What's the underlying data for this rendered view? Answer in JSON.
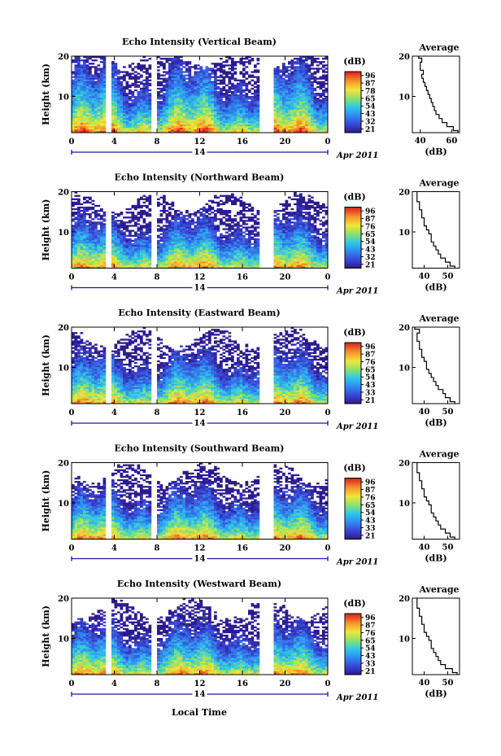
{
  "figure": {
    "footer_label": "Local Time"
  },
  "chart_data": [
    {
      "type": "heatmap",
      "title": "Echo Intensity (Vertical Beam)",
      "ylabel": "Height (km)",
      "y_ticks": [
        "10",
        "20"
      ],
      "ylim": [
        1,
        20
      ],
      "x_ticks": [
        "0",
        "4",
        "8",
        "12",
        "16",
        "20",
        "0"
      ],
      "xlim": [
        0,
        24
      ],
      "date_label": "14",
      "month_label": "Apr 2011",
      "colorbar": {
        "unit": "(dB)",
        "ticks": [
          "96",
          "87",
          "78",
          "65",
          "54",
          "43",
          "32",
          "21"
        ],
        "range": [
          21,
          96
        ]
      },
      "gaps_hours": [
        [
          3.2,
          3.6
        ],
        [
          7.6,
          8.0
        ],
        [
          17.6,
          19.0
        ]
      ],
      "profile": {
        "title": "Average",
        "xlabel": "(dB)",
        "x_ticks": [
          "40",
          "60"
        ],
        "xlim": [
          35,
          65
        ],
        "y_ticks": [
          "10",
          "20"
        ],
        "heights": [
          1,
          2,
          3,
          4,
          5,
          6,
          7,
          8,
          9,
          10,
          11,
          12,
          13,
          14,
          15,
          16,
          17,
          18,
          19,
          20
        ],
        "values": [
          64,
          61,
          57,
          54,
          52,
          50,
          49,
          48,
          47,
          46,
          45,
          44,
          43,
          42,
          41,
          42,
          40,
          40,
          41,
          39
        ]
      }
    },
    {
      "type": "heatmap",
      "title": "Echo Intensity (Northward Beam)",
      "ylabel": "Height (km)",
      "y_ticks": [
        "10",
        "20"
      ],
      "ylim": [
        1,
        20
      ],
      "x_ticks": [
        "0",
        "4",
        "8",
        "12",
        "16",
        "20",
        "0"
      ],
      "xlim": [
        0,
        24
      ],
      "date_label": "14",
      "month_label": "Apr 2011",
      "colorbar": {
        "unit": "(dB)",
        "ticks": [
          "96",
          "87",
          "76",
          "65",
          "54",
          "43",
          "32",
          "21"
        ],
        "range": [
          21,
          96
        ]
      },
      "gaps_hours": [
        [
          3.2,
          3.6
        ],
        [
          7.6,
          8.0
        ],
        [
          17.6,
          19.0
        ]
      ],
      "profile": {
        "title": "Average",
        "xlabel": "(dB)",
        "x_ticks": [
          "40",
          "50"
        ],
        "xlim": [
          35,
          55
        ],
        "y_ticks": [
          "10",
          "20"
        ],
        "heights": [
          1,
          2,
          3,
          4,
          5,
          6,
          7,
          8,
          9,
          10,
          11,
          12,
          13,
          14,
          15,
          16,
          17,
          18,
          19,
          20
        ],
        "values": [
          53,
          51,
          49,
          47,
          46,
          45,
          44,
          43,
          43,
          42,
          41,
          40,
          40,
          39,
          39,
          38,
          38,
          37,
          37,
          37
        ]
      }
    },
    {
      "type": "heatmap",
      "title": "Echo Intensity (Eastward Beam)",
      "ylabel": "Height (km)",
      "y_ticks": [
        "10",
        "20"
      ],
      "ylim": [
        1,
        20
      ],
      "x_ticks": [
        "0",
        "4",
        "8",
        "12",
        "16",
        "20",
        "0"
      ],
      "xlim": [
        0,
        24
      ],
      "date_label": "14",
      "month_label": "Apr 2011",
      "colorbar": {
        "unit": "(dB)",
        "ticks": [
          "96",
          "87",
          "76",
          "65",
          "54",
          "43",
          "33",
          "21"
        ],
        "range": [
          21,
          96
        ]
      },
      "gaps_hours": [
        [
          3.2,
          3.6
        ],
        [
          7.6,
          8.0
        ],
        [
          17.6,
          19.0
        ]
      ],
      "profile": {
        "title": "Average",
        "xlabel": "(dB)",
        "x_ticks": [
          "40",
          "50"
        ],
        "xlim": [
          35,
          55
        ],
        "y_ticks": [
          "10",
          "20"
        ],
        "heights": [
          1,
          2,
          3,
          4,
          5,
          6,
          7,
          8,
          9,
          10,
          11,
          12,
          13,
          14,
          15,
          16,
          17,
          18,
          19,
          20
        ],
        "values": [
          53,
          51,
          49,
          48,
          46,
          45,
          44,
          43,
          42,
          41,
          41,
          40,
          39,
          39,
          38,
          38,
          37,
          37,
          38,
          36
        ]
      }
    },
    {
      "type": "heatmap",
      "title": "Echo Intensity (Southward Beam)",
      "ylabel": "Height (km)",
      "y_ticks": [
        "10",
        "20"
      ],
      "ylim": [
        1,
        20
      ],
      "x_ticks": [
        "0",
        "4",
        "8",
        "12",
        "16",
        "20",
        "0"
      ],
      "xlim": [
        0,
        24
      ],
      "date_label": "14",
      "month_label": "Apr 2011",
      "colorbar": {
        "unit": "(dB)",
        "ticks": [
          "96",
          "87",
          "76",
          "65",
          "54",
          "43",
          "33",
          "21"
        ],
        "range": [
          21,
          96
        ]
      },
      "gaps_hours": [
        [
          3.2,
          3.6
        ],
        [
          7.6,
          8.0
        ],
        [
          17.6,
          19.0
        ]
      ],
      "profile": {
        "title": "Average",
        "xlabel": "(dB)",
        "x_ticks": [
          "40",
          "50"
        ],
        "xlim": [
          35,
          55
        ],
        "y_ticks": [
          "10",
          "20"
        ],
        "heights": [
          1,
          2,
          3,
          4,
          5,
          6,
          7,
          8,
          9,
          10,
          11,
          12,
          13,
          14,
          15,
          16,
          17,
          18,
          19,
          20
        ],
        "values": [
          53,
          51,
          49,
          47,
          46,
          45,
          44,
          43,
          43,
          42,
          41,
          40,
          40,
          39,
          39,
          38,
          38,
          37,
          37,
          37
        ]
      }
    },
    {
      "type": "heatmap",
      "title": "Echo Intensity (Westward Beam)",
      "ylabel": "Height (km)",
      "y_ticks": [
        "10",
        "20"
      ],
      "ylim": [
        1,
        20
      ],
      "x_ticks": [
        "0",
        "4",
        "8",
        "12",
        "16",
        "20",
        "0"
      ],
      "xlim": [
        0,
        24
      ],
      "date_label": "14",
      "month_label": "Apr 2011",
      "colorbar": {
        "unit": "(dB)",
        "ticks": [
          "96",
          "87",
          "76",
          "65",
          "54",
          "43",
          "33",
          "21"
        ],
        "range": [
          21,
          96
        ]
      },
      "gaps_hours": [
        [
          3.2,
          3.6
        ],
        [
          7.6,
          8.0
        ],
        [
          17.6,
          19.0
        ]
      ],
      "profile": {
        "title": "Average",
        "xlabel": "(dB)",
        "x_ticks": [
          "40",
          "50"
        ],
        "xlim": [
          35,
          55
        ],
        "y_ticks": [
          "10",
          "20"
        ],
        "heights": [
          1,
          2,
          3,
          4,
          5,
          6,
          7,
          8,
          9,
          10,
          11,
          12,
          13,
          14,
          15,
          16,
          17,
          18,
          19,
          20
        ],
        "values": [
          54,
          52,
          49,
          47,
          46,
          45,
          44,
          43,
          43,
          42,
          41,
          40,
          40,
          39,
          39,
          38,
          38,
          37,
          37,
          37
        ]
      }
    }
  ]
}
